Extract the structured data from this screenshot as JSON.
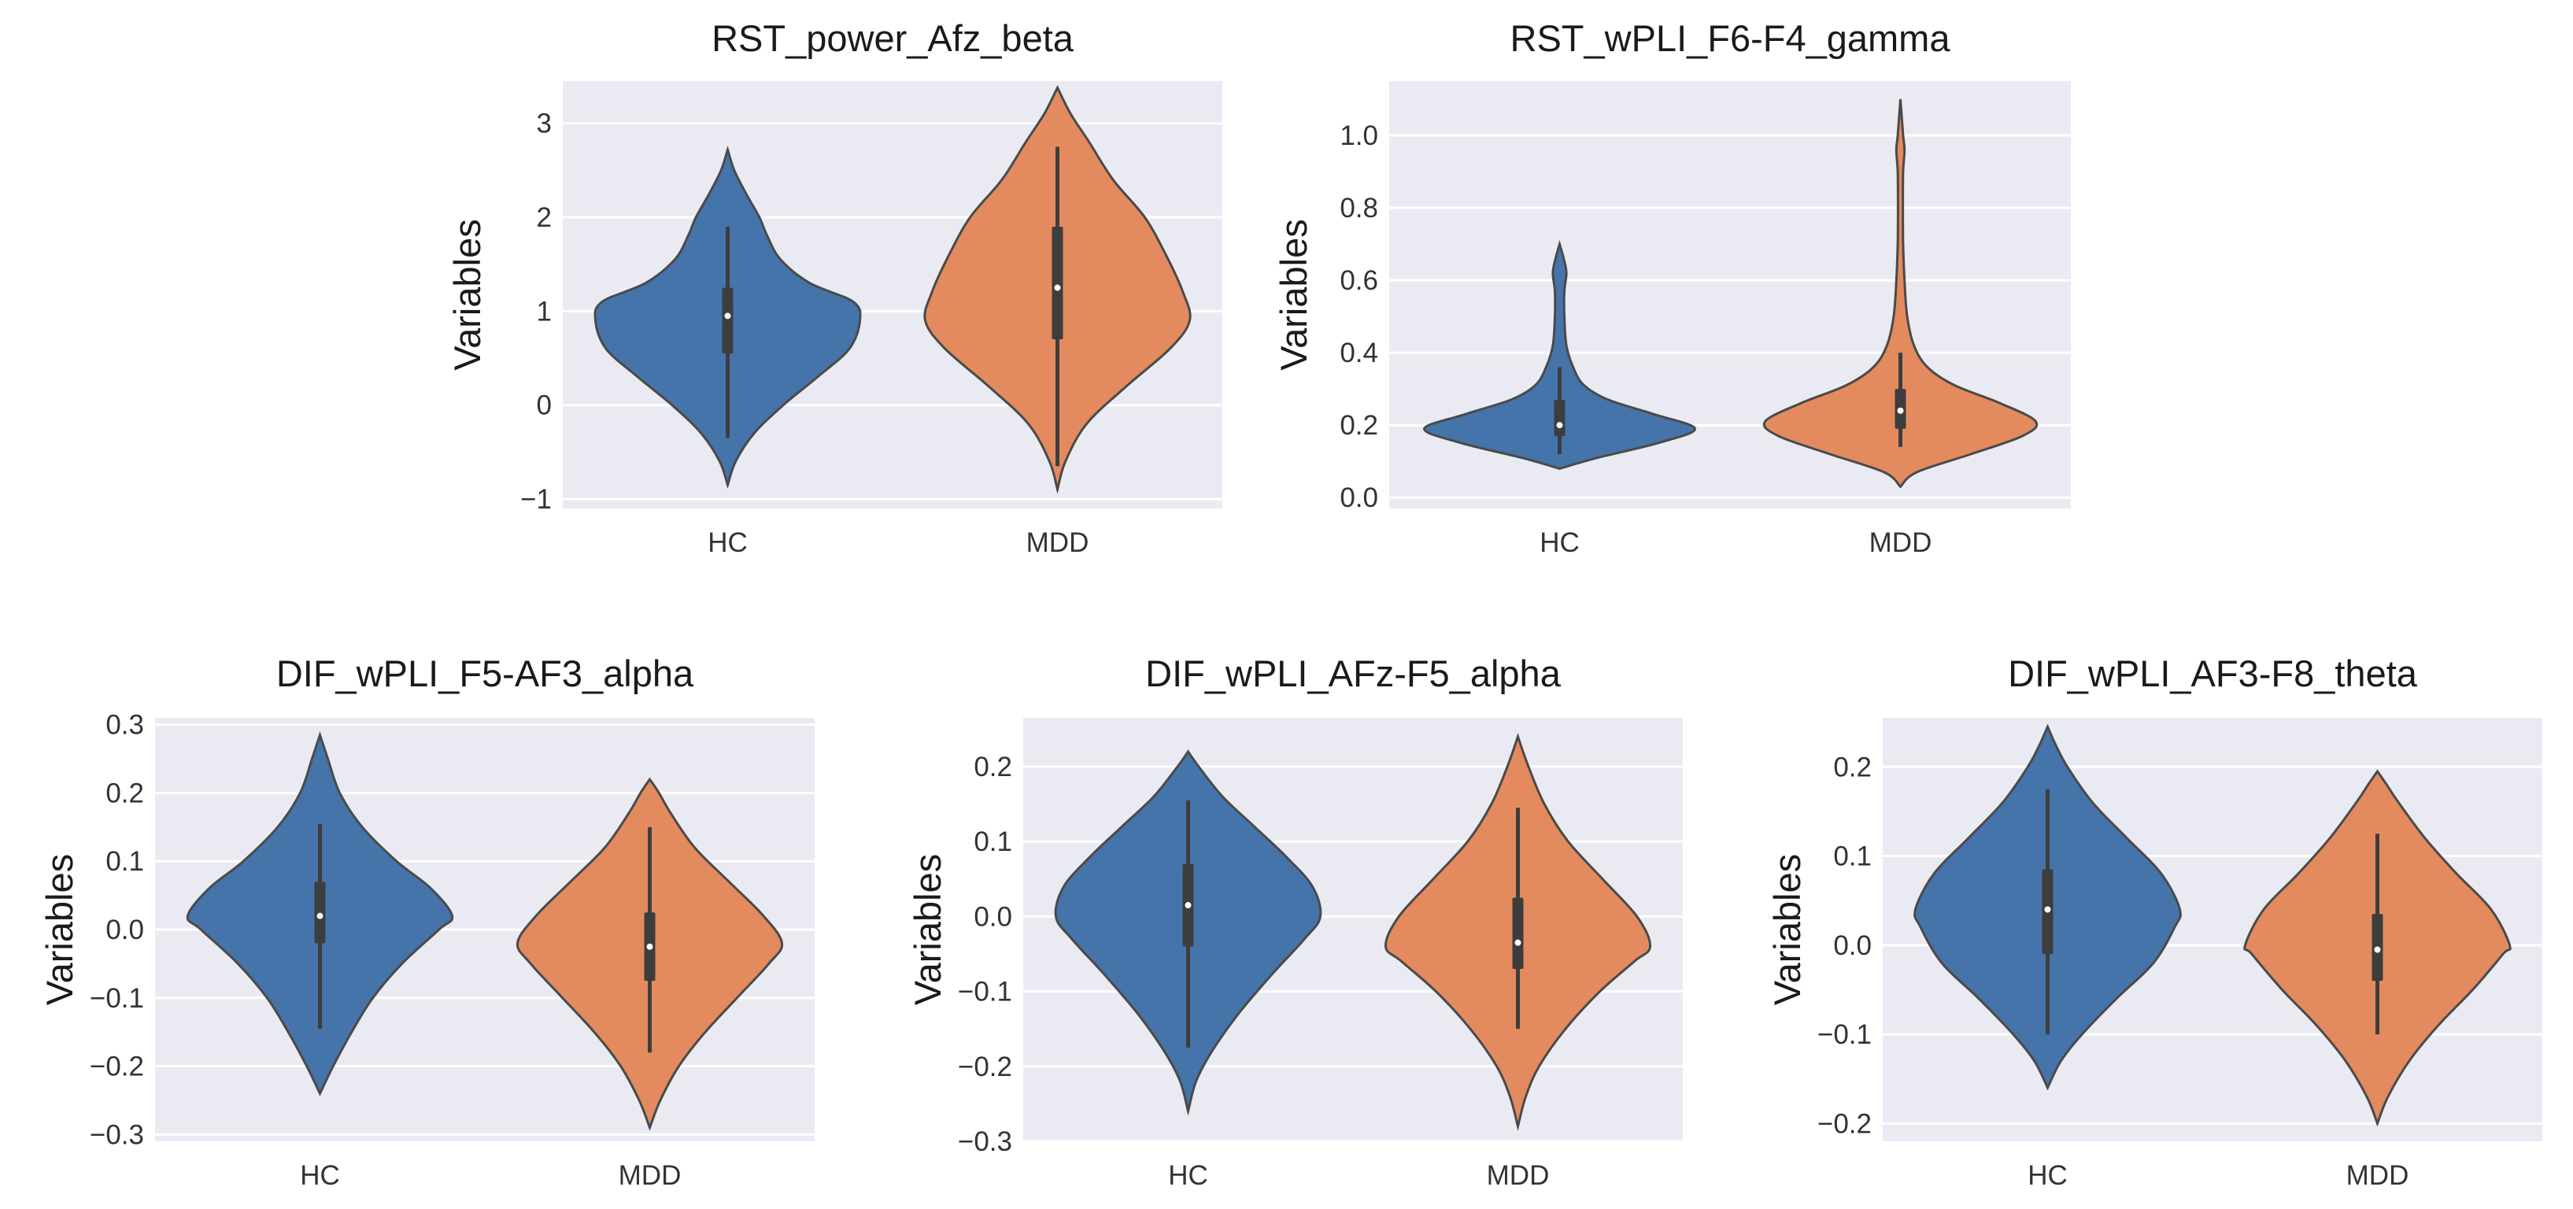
{
  "colors": {
    "hc": "#4574ab",
    "mdd": "#e38b5e",
    "panel_bg": "#eaeaf2",
    "grid": "#ffffff"
  },
  "chart_data": [
    {
      "type": "violin",
      "title": "RST_power_Afz_beta",
      "ylabel": "Variables",
      "categories": [
        "HC",
        "MDD"
      ],
      "ylim": [
        -1.1,
        3.45
      ],
      "yticks": [
        -1,
        0,
        1,
        2,
        3
      ],
      "ytick_labels": [
        "−1",
        "0",
        "1",
        "2",
        "3"
      ],
      "groups": [
        {
          "name": "HC",
          "profile": [
            [
              -0.85,
              0.0
            ],
            [
              -0.6,
              0.06
            ],
            [
              -0.3,
              0.2
            ],
            [
              0.0,
              0.42
            ],
            [
              0.3,
              0.68
            ],
            [
              0.6,
              0.92
            ],
            [
              0.9,
              1.0
            ],
            [
              1.1,
              0.95
            ],
            [
              1.3,
              0.62
            ],
            [
              1.55,
              0.4
            ],
            [
              1.8,
              0.3
            ],
            [
              2.0,
              0.24
            ],
            [
              2.25,
              0.14
            ],
            [
              2.5,
              0.05
            ],
            [
              2.72,
              0.0
            ]
          ],
          "whisker": [
            -0.35,
            1.9
          ],
          "q1": 0.55,
          "q3": 1.25,
          "median": 0.95
        },
        {
          "name": "MDD",
          "profile": [
            [
              -0.9,
              0.0
            ],
            [
              -0.6,
              0.06
            ],
            [
              -0.2,
              0.22
            ],
            [
              0.2,
              0.52
            ],
            [
              0.6,
              0.85
            ],
            [
              0.9,
              1.0
            ],
            [
              1.2,
              0.95
            ],
            [
              1.6,
              0.82
            ],
            [
              2.0,
              0.66
            ],
            [
              2.4,
              0.42
            ],
            [
              2.8,
              0.24
            ],
            [
              3.1,
              0.1
            ],
            [
              3.38,
              0.0
            ]
          ],
          "whisker": [
            -0.65,
            2.75
          ],
          "q1": 0.7,
          "q3": 1.9,
          "median": 1.25
        }
      ]
    },
    {
      "type": "violin",
      "title": "RST_wPLI_F6-F4_gamma",
      "ylabel": "Variables",
      "categories": [
        "HC",
        "MDD"
      ],
      "ylim": [
        -0.03,
        1.15
      ],
      "yticks": [
        0.0,
        0.2,
        0.4,
        0.6,
        0.8,
        1.0
      ],
      "ytick_labels": [
        "0.0",
        "0.2",
        "0.4",
        "0.6",
        "0.8",
        "1.0"
      ],
      "groups": [
        {
          "name": "HC",
          "profile": [
            [
              0.08,
              0.0
            ],
            [
              0.11,
              0.28
            ],
            [
              0.15,
              0.72
            ],
            [
              0.19,
              1.0
            ],
            [
              0.23,
              0.7
            ],
            [
              0.27,
              0.36
            ],
            [
              0.31,
              0.18
            ],
            [
              0.36,
              0.1
            ],
            [
              0.42,
              0.05
            ],
            [
              0.5,
              0.035
            ],
            [
              0.57,
              0.035
            ],
            [
              0.62,
              0.05
            ],
            [
              0.66,
              0.03
            ],
            [
              0.7,
              0.0
            ]
          ],
          "whisker": [
            0.12,
            0.36
          ],
          "q1": 0.17,
          "q3": 0.27,
          "median": 0.2
        },
        {
          "name": "MDD",
          "profile": [
            [
              0.03,
              0.0
            ],
            [
              0.07,
              0.12
            ],
            [
              0.12,
              0.52
            ],
            [
              0.17,
              0.9
            ],
            [
              0.21,
              1.0
            ],
            [
              0.26,
              0.74
            ],
            [
              0.31,
              0.4
            ],
            [
              0.36,
              0.2
            ],
            [
              0.42,
              0.1
            ],
            [
              0.5,
              0.05
            ],
            [
              0.6,
              0.03
            ],
            [
              0.7,
              0.02
            ],
            [
              0.8,
              0.018
            ],
            [
              0.9,
              0.02
            ],
            [
              0.96,
              0.03
            ],
            [
              1.0,
              0.02
            ],
            [
              1.1,
              0.0
            ]
          ],
          "whisker": [
            0.14,
            0.4
          ],
          "q1": 0.19,
          "q3": 0.3,
          "median": 0.24
        }
      ]
    },
    {
      "type": "violin",
      "title": "DIF_wPLI_F5-AF3_alpha",
      "ylabel": "Variables",
      "categories": [
        "HC",
        "MDD"
      ],
      "ylim": [
        -0.31,
        0.31
      ],
      "yticks": [
        -0.3,
        -0.2,
        -0.1,
        0.0,
        0.1,
        0.2,
        0.3
      ],
      "ytick_labels": [
        "−0.3",
        "−0.2",
        "−0.1",
        "0.0",
        "0.1",
        "0.2",
        "0.3"
      ],
      "groups": [
        {
          "name": "HC",
          "profile": [
            [
              -0.24,
              0.0
            ],
            [
              -0.2,
              0.1
            ],
            [
              -0.15,
              0.24
            ],
            [
              -0.1,
              0.4
            ],
            [
              -0.05,
              0.62
            ],
            [
              0.0,
              0.9
            ],
            [
              0.02,
              1.0
            ],
            [
              0.06,
              0.84
            ],
            [
              0.1,
              0.58
            ],
            [
              0.15,
              0.32
            ],
            [
              0.2,
              0.15
            ],
            [
              0.25,
              0.06
            ],
            [
              0.285,
              0.0
            ]
          ],
          "whisker": [
            -0.145,
            0.155
          ],
          "q1": -0.02,
          "q3": 0.07,
          "median": 0.02
        },
        {
          "name": "MDD",
          "profile": [
            [
              -0.29,
              0.0
            ],
            [
              -0.25,
              0.08
            ],
            [
              -0.2,
              0.22
            ],
            [
              -0.15,
              0.42
            ],
            [
              -0.1,
              0.66
            ],
            [
              -0.05,
              0.9
            ],
            [
              -0.02,
              1.0
            ],
            [
              0.02,
              0.86
            ],
            [
              0.07,
              0.6
            ],
            [
              0.12,
              0.34
            ],
            [
              0.17,
              0.16
            ],
            [
              0.2,
              0.07
            ],
            [
              0.22,
              0.0
            ]
          ],
          "whisker": [
            -0.18,
            0.15
          ],
          "q1": -0.075,
          "q3": 0.025,
          "median": -0.025
        }
      ]
    },
    {
      "type": "violin",
      "title": "DIF_wPLI_AFz-F5_alpha",
      "ylabel": "Variables",
      "categories": [
        "HC",
        "MDD"
      ],
      "ylim": [
        -0.3,
        0.265
      ],
      "yticks": [
        -0.3,
        -0.2,
        -0.1,
        0.0,
        0.1,
        0.2
      ],
      "ytick_labels": [
        "−0.3",
        "−0.2",
        "−0.1",
        "0.0",
        "0.1",
        "0.2"
      ],
      "groups": [
        {
          "name": "HC",
          "profile": [
            [
              -0.26,
              0.0
            ],
            [
              -0.22,
              0.06
            ],
            [
              -0.18,
              0.18
            ],
            [
              -0.13,
              0.38
            ],
            [
              -0.08,
              0.62
            ],
            [
              -0.03,
              0.88
            ],
            [
              0.0,
              1.0
            ],
            [
              0.04,
              0.94
            ],
            [
              0.08,
              0.74
            ],
            [
              0.12,
              0.5
            ],
            [
              0.16,
              0.26
            ],
            [
              0.2,
              0.08
            ],
            [
              0.22,
              0.0
            ]
          ],
          "whisker": [
            -0.175,
            0.155
          ],
          "q1": -0.04,
          "q3": 0.07,
          "median": 0.015
        },
        {
          "name": "MDD",
          "profile": [
            [
              -0.28,
              0.0
            ],
            [
              -0.24,
              0.06
            ],
            [
              -0.2,
              0.16
            ],
            [
              -0.15,
              0.36
            ],
            [
              -0.1,
              0.62
            ],
            [
              -0.06,
              0.88
            ],
            [
              -0.04,
              1.0
            ],
            [
              0.0,
              0.9
            ],
            [
              0.05,
              0.64
            ],
            [
              0.1,
              0.38
            ],
            [
              0.15,
              0.2
            ],
            [
              0.2,
              0.08
            ],
            [
              0.24,
              0.0
            ]
          ],
          "whisker": [
            -0.15,
            0.145
          ],
          "q1": -0.07,
          "q3": 0.025,
          "median": -0.035
        }
      ]
    },
    {
      "type": "violin",
      "title": "DIF_wPLI_AF3-F8_theta",
      "ylabel": "Variables",
      "categories": [
        "HC",
        "MDD"
      ],
      "ylim": [
        -0.22,
        0.255
      ],
      "yticks": [
        -0.2,
        -0.1,
        0.0,
        0.1,
        0.2
      ],
      "ytick_labels": [
        "−0.2",
        "−0.1",
        "0.0",
        "0.1",
        "0.2"
      ],
      "groups": [
        {
          "name": "HC",
          "profile": [
            [
              -0.16,
              0.0
            ],
            [
              -0.13,
              0.1
            ],
            [
              -0.1,
              0.26
            ],
            [
              -0.06,
              0.52
            ],
            [
              -0.02,
              0.8
            ],
            [
              0.02,
              0.96
            ],
            [
              0.04,
              1.0
            ],
            [
              0.08,
              0.86
            ],
            [
              0.12,
              0.6
            ],
            [
              0.16,
              0.34
            ],
            [
              0.2,
              0.15
            ],
            [
              0.225,
              0.06
            ],
            [
              0.245,
              0.0
            ]
          ],
          "whisker": [
            -0.1,
            0.175
          ],
          "q1": -0.01,
          "q3": 0.085,
          "median": 0.04
        },
        {
          "name": "MDD",
          "profile": [
            [
              -0.2,
              0.0
            ],
            [
              -0.17,
              0.08
            ],
            [
              -0.13,
              0.24
            ],
            [
              -0.09,
              0.46
            ],
            [
              -0.05,
              0.72
            ],
            [
              -0.01,
              0.95
            ],
            [
              0.0,
              1.0
            ],
            [
              0.04,
              0.86
            ],
            [
              0.08,
              0.6
            ],
            [
              0.12,
              0.36
            ],
            [
              0.16,
              0.16
            ],
            [
              0.18,
              0.07
            ],
            [
              0.195,
              0.0
            ]
          ],
          "whisker": [
            -0.1,
            0.125
          ],
          "q1": -0.04,
          "q3": 0.035,
          "median": -0.005
        }
      ]
    }
  ]
}
